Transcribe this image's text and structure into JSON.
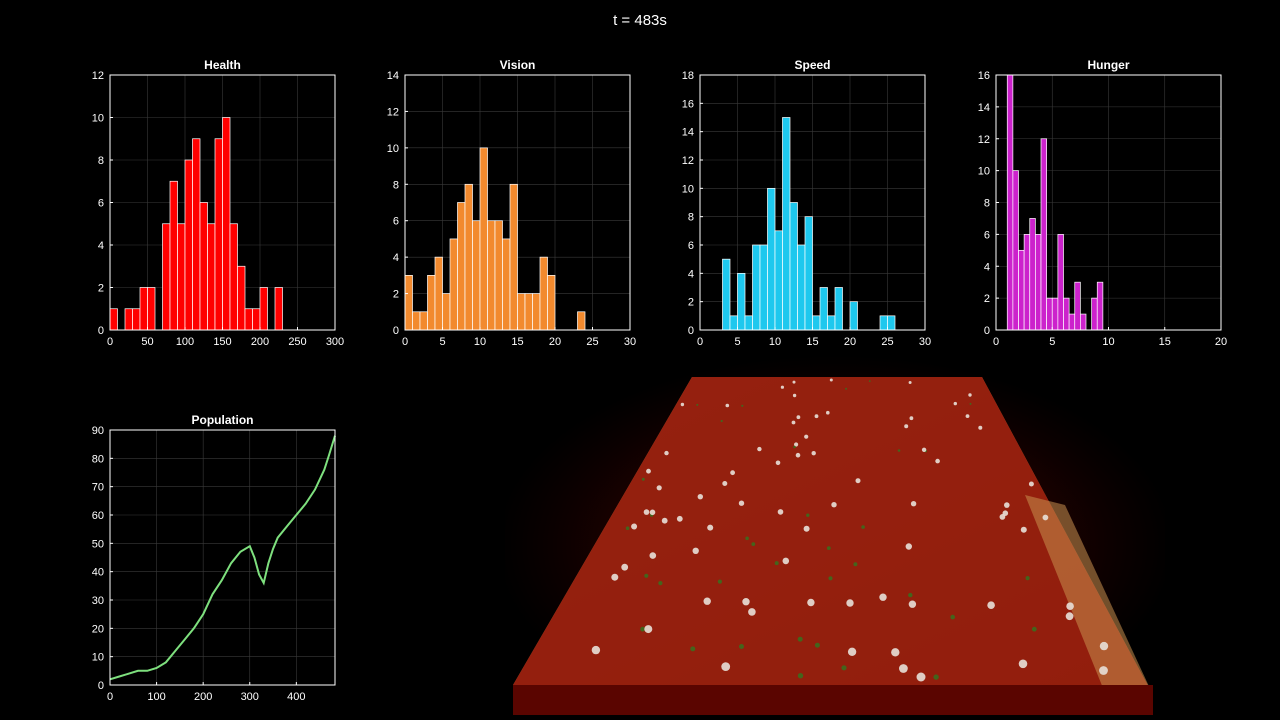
{
  "time_label": "t = 483s",
  "chart_data": [
    {
      "id": "health",
      "type": "bar",
      "title": "Health",
      "color": "#ff0000",
      "bin_width": 10,
      "bin_start": 0,
      "values": [
        1,
        0,
        1,
        1,
        2,
        2,
        0,
        5,
        7,
        5,
        8,
        9,
        6,
        5,
        9,
        10,
        5,
        3,
        1,
        1,
        2,
        0,
        2,
        0,
        0,
        0,
        0,
        0,
        0,
        0
      ],
      "xlim": [
        0,
        300
      ],
      "ylim": [
        0,
        12
      ],
      "xticks": [
        0,
        50,
        100,
        150,
        200,
        250,
        300
      ],
      "yticks": [
        0,
        2,
        4,
        6,
        8,
        10,
        12
      ]
    },
    {
      "id": "vision",
      "type": "bar",
      "title": "Vision",
      "color": "#f28a2e",
      "bin_width": 1,
      "bin_start": 0,
      "values": [
        3,
        1,
        1,
        3,
        4,
        2,
        5,
        7,
        8,
        6,
        10,
        6,
        6,
        5,
        8,
        2,
        2,
        2,
        4,
        3,
        0,
        0,
        0,
        1,
        0,
        0,
        0,
        0,
        0,
        0
      ],
      "xlim": [
        0,
        30
      ],
      "ylim": [
        0,
        14
      ],
      "xticks": [
        0,
        5,
        10,
        15,
        20,
        25,
        30
      ],
      "yticks": [
        0,
        2,
        4,
        6,
        8,
        10,
        12,
        14
      ]
    },
    {
      "id": "speed",
      "type": "bar",
      "title": "Speed",
      "color": "#1ec8ee",
      "bin_width": 1,
      "bin_start": 0,
      "values": [
        0,
        0,
        0,
        5,
        1,
        4,
        1,
        6,
        6,
        10,
        7,
        15,
        9,
        6,
        8,
        1,
        3,
        1,
        3,
        0,
        2,
        0,
        0,
        0,
        1,
        1,
        0,
        0,
        0,
        0
      ],
      "xlim": [
        0,
        30
      ],
      "ylim": [
        0,
        18
      ],
      "xticks": [
        0,
        5,
        10,
        15,
        20,
        25,
        30
      ],
      "yticks": [
        0,
        2,
        4,
        6,
        8,
        10,
        12,
        14,
        16,
        18
      ]
    },
    {
      "id": "hunger",
      "type": "bar",
      "title": "Hunger",
      "color": "#cc22cc",
      "bin_width": 0.5,
      "bin_start": 1,
      "values": [
        16,
        10,
        5,
        6,
        7,
        6,
        12,
        2,
        2,
        6,
        2,
        1,
        3,
        1,
        0,
        2,
        3
      ],
      "xlim": [
        0,
        20
      ],
      "ylim": [
        0,
        16
      ],
      "xticks": [
        0,
        5,
        10,
        15,
        20
      ],
      "yticks": [
        0,
        2,
        4,
        6,
        8,
        10,
        12,
        14,
        16
      ]
    },
    {
      "id": "population",
      "type": "line",
      "title": "Population",
      "color": "#7ee07e",
      "x": [
        0,
        20,
        40,
        60,
        80,
        100,
        120,
        140,
        160,
        180,
        200,
        220,
        240,
        260,
        280,
        300,
        310,
        320,
        330,
        340,
        350,
        360,
        380,
        400,
        420,
        440,
        460,
        470,
        483
      ],
      "y": [
        2,
        3,
        4,
        5,
        5,
        6,
        8,
        12,
        16,
        20,
        25,
        32,
        37,
        43,
        47,
        49,
        45,
        39,
        36,
        43,
        48,
        52,
        56,
        60,
        64,
        69,
        76,
        81,
        88
      ],
      "xlim": [
        0,
        483
      ],
      "ylim": [
        0,
        90
      ],
      "xticks": [
        0,
        100,
        200,
        300,
        400
      ],
      "yticks": [
        0,
        10,
        20,
        30,
        40,
        50,
        60,
        70,
        80,
        90
      ]
    }
  ]
}
